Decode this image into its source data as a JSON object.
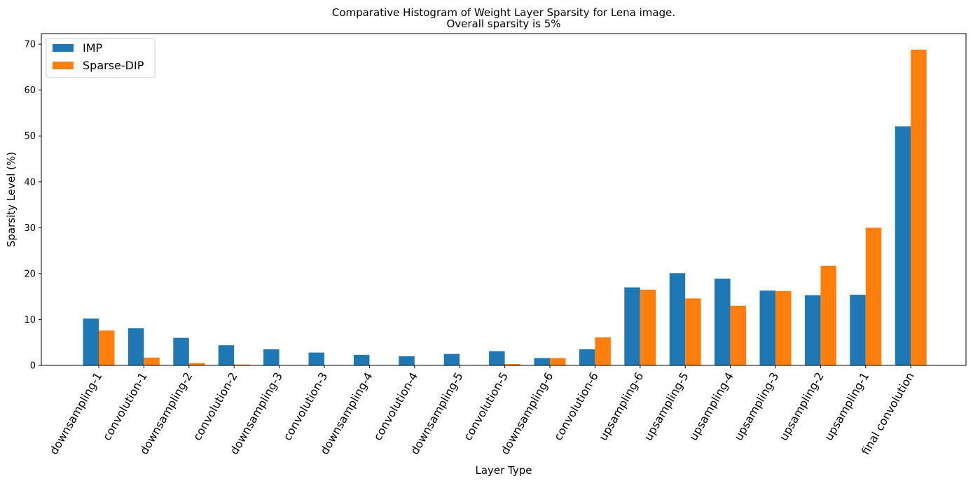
{
  "chart_data": {
    "type": "bar",
    "title": [
      "Comparative Histogram of Weight Layer Sparsity for Lena image.",
      "Overall sparsity is 5%"
    ],
    "xlabel": "Layer Type",
    "ylabel": "Sparsity Level (%)",
    "ylim": [
      0,
      72.3
    ],
    "yticks": [
      0,
      10,
      20,
      30,
      40,
      50,
      60,
      70
    ],
    "grid": false,
    "legend_position": "top-left",
    "categories": [
      "downsampling-1",
      "convolution-1",
      "downsampling-2",
      "convolution-2",
      "downsampling-3",
      "convolution-3",
      "downsampling-4",
      "convolution-4",
      "downsampling-5",
      "convolution-5",
      "downsampling-6",
      "convolution-6",
      "upsampling-6",
      "upsampling-5",
      "upsampling-4",
      "upsampling-3",
      "upsampling-2",
      "upsampling-1",
      "final convolution"
    ],
    "series": [
      {
        "name": "IMP",
        "color": "#1f77b4",
        "values": [
          10.2,
          8.1,
          6.0,
          4.4,
          3.5,
          2.8,
          2.3,
          2.0,
          2.5,
          3.1,
          1.6,
          3.5,
          17.0,
          20.1,
          18.9,
          16.3,
          15.3,
          15.4,
          52.1
        ]
      },
      {
        "name": "Sparse-DIP",
        "color": "#ff7f0e",
        "values": [
          7.6,
          1.7,
          0.5,
          0.2,
          0.0,
          0.0,
          0.0,
          0.0,
          0.0,
          0.3,
          1.6,
          6.1,
          16.5,
          14.6,
          13.0,
          16.2,
          21.7,
          30.0,
          68.8
        ]
      }
    ]
  }
}
